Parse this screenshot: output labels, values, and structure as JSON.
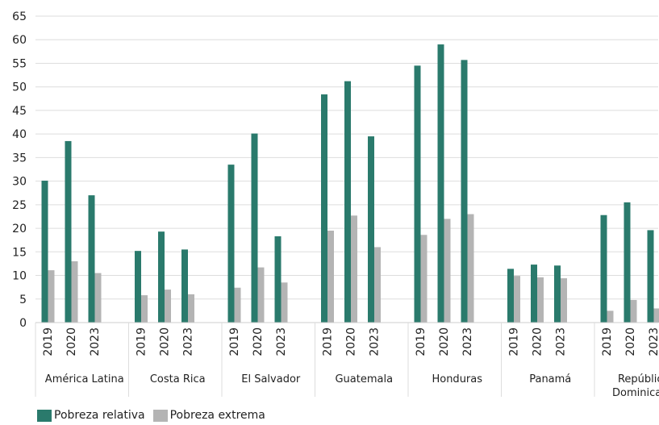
{
  "chart_data": {
    "type": "bar",
    "groups": [
      {
        "name": "América Latina",
        "name_lines": [
          "América Latina"
        ]
      },
      {
        "name": "Costa Rica",
        "name_lines": [
          "Costa Rica"
        ]
      },
      {
        "name": "El Salvador",
        "name_lines": [
          "El Salvador"
        ]
      },
      {
        "name": "Guatemala",
        "name_lines": [
          "Guatemala"
        ]
      },
      {
        "name": "Honduras",
        "name_lines": [
          "Honduras"
        ]
      },
      {
        "name": "Panamá",
        "name_lines": [
          "Panamá"
        ]
      },
      {
        "name": "República Dominicana",
        "name_lines": [
          "República",
          "Dominicana"
        ]
      }
    ],
    "years": [
      "2019",
      "2020",
      "2023"
    ],
    "series": [
      {
        "name": "Pobreza relativa",
        "color": "#2a7a6c",
        "values": [
          [
            30.1,
            38.5,
            27.0
          ],
          [
            15.2,
            19.3,
            15.5
          ],
          [
            33.5,
            40.1,
            18.3
          ],
          [
            48.4,
            51.2,
            39.5
          ],
          [
            54.5,
            59.0,
            55.7
          ],
          [
            11.4,
            12.3,
            12.1
          ],
          [
            22.8,
            25.5,
            19.6
          ]
        ]
      },
      {
        "name": "Pobreza extrema",
        "color": "#b4b4b4",
        "values": [
          [
            11.1,
            13.0,
            10.5
          ],
          [
            5.8,
            7.0,
            6.0
          ],
          [
            7.4,
            11.7,
            8.5
          ],
          [
            19.5,
            22.7,
            16.0
          ],
          [
            18.6,
            22.0,
            23.0
          ],
          [
            9.9,
            9.6,
            9.4
          ],
          [
            2.5,
            4.8,
            3.0
          ]
        ]
      }
    ],
    "ylim": [
      0,
      65
    ],
    "yticks": [
      0,
      5,
      10,
      15,
      20,
      25,
      30,
      35,
      40,
      45,
      50,
      55,
      60,
      65
    ],
    "grid": true,
    "legend_position": "bottom-left"
  }
}
